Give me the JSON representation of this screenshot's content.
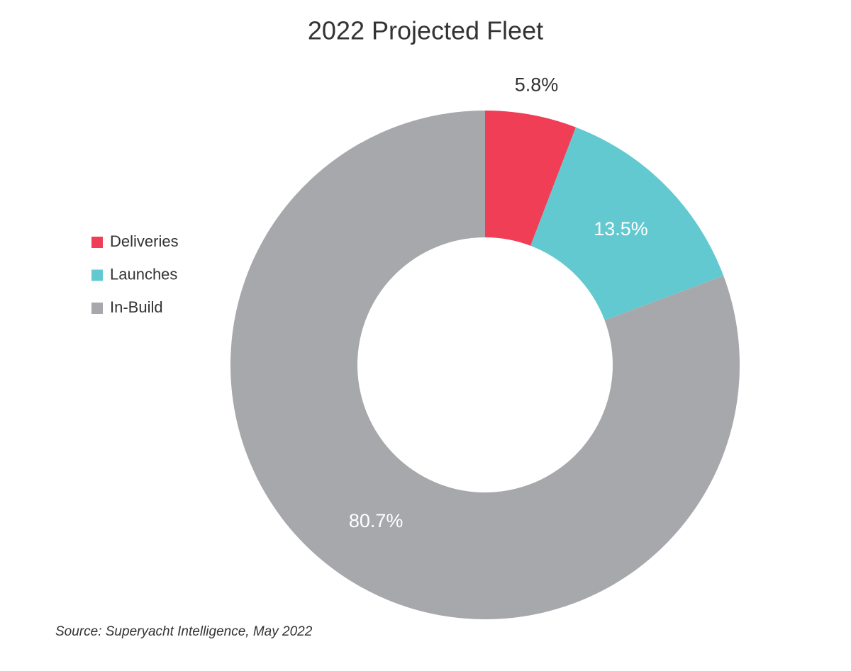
{
  "chart_data": {
    "type": "donut",
    "title": "2022 Projected Fleet",
    "categories": [
      "Deliveries",
      "Launches",
      "In-Build"
    ],
    "values": [
      5.8,
      13.5,
      80.7
    ],
    "value_labels": [
      "5.8%",
      "13.5%",
      "80.7%"
    ],
    "colors": [
      "#ef3e55",
      "#63c9d1",
      "#a7a8ab"
    ],
    "legend": "left",
    "source": "Source: Superyacht Intelligence, May 2022"
  }
}
